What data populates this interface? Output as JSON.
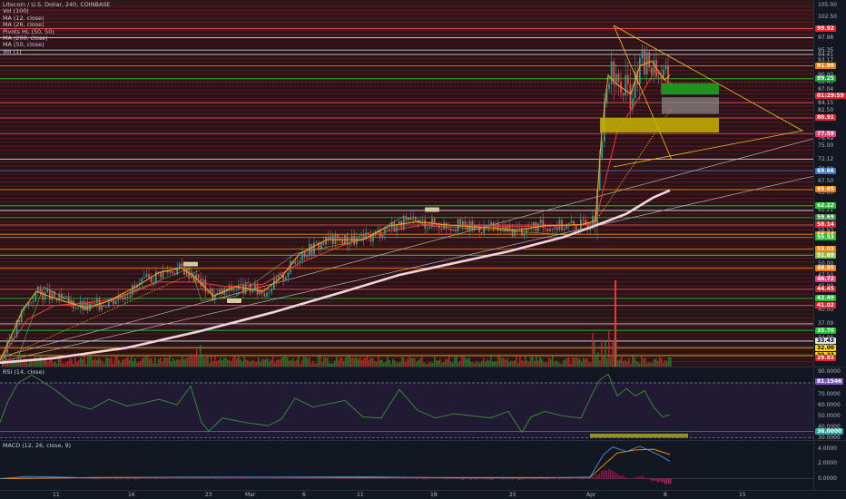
{
  "header": {
    "symbol": "Litecoin / U.S. Dollar, 240, COINBASE",
    "indicators": [
      "Vol (100)",
      "MA (12, close)",
      "MA (26, close)",
      "Pivots HL (50, 50)",
      "MA (200, close)",
      "MA (50, close)",
      "Vol (1)"
    ]
  },
  "rsi_legend": "RSI (14, close)",
  "macd_legend": "MACD (12, 26, close, 9)",
  "colors": {
    "background": "#131722",
    "up": "#26a69a",
    "down": "#ef5350",
    "ma_fast": "#f7a21b",
    "ma_slow": "#e53935",
    "ma_200": "#f3d3dc",
    "rsi_line": "#3f8f3f",
    "rsi_band": "#7e57c2",
    "macd_line": "#4a8fd8",
    "signal_line": "#ff9800",
    "box_green": "#1d9a1d",
    "box_gray": "#8c8c8c",
    "box_yellow": "#c8b400"
  },
  "price_axis": {
    "ticks": [
      "105.00",
      "102.50",
      "97.98",
      "95.35",
      "94.41",
      "93.17",
      "90.00",
      "88.46",
      "87.04",
      "84.15",
      "82.50",
      "77.59",
      "76.49",
      "75.00",
      "72.12",
      "70.00",
      "67.50",
      "65.00",
      "62.22",
      "61.21",
      "58.14",
      "56.93",
      "52.50",
      "50.00",
      "47.50",
      "45.00",
      "40.00",
      "37.09",
      "34.08",
      "32.98",
      "30.37",
      "29.83"
    ],
    "badges": [
      {
        "text": "99.92",
        "bg": "#e8212f",
        "fg": "#ffffff"
      },
      {
        "text": "91.99",
        "bg": "#f57c00",
        "fg": "#ffffff"
      },
      {
        "text": "89.25",
        "bg": "#1e9e2e",
        "fg": "#ffffff"
      },
      {
        "text": "01:29:59",
        "bg": "#e8212f",
        "fg": "#ffffff"
      },
      {
        "text": "80.91",
        "bg": "#e8212f",
        "fg": "#ffffff"
      },
      {
        "text": "77.59",
        "bg": "#ec407a",
        "fg": "#ffffff"
      },
      {
        "text": "69.66",
        "bg": "#3f73c4",
        "fg": "#ffffff"
      },
      {
        "text": "65.65",
        "bg": "#f57c00",
        "fg": "#ffffff"
      },
      {
        "text": "62.22",
        "bg": "#22c02a",
        "fg": "#ffffff"
      },
      {
        "text": "59.69",
        "bg": "#3a8a3a",
        "fg": "#ffffff"
      },
      {
        "text": "58.14",
        "bg": "#e8212f",
        "fg": "#ffffff"
      },
      {
        "text": "56.14",
        "bg": "#f57c00",
        "fg": "#ffffff"
      },
      {
        "text": "55.53",
        "bg": "#22c02a",
        "fg": "#ffffff"
      },
      {
        "text": "53.03",
        "bg": "#f57c00",
        "fg": "#ffffff"
      },
      {
        "text": "51.69",
        "bg": "#8bc34a",
        "fg": "#ffffff"
      },
      {
        "text": "48.95",
        "bg": "#f57c00",
        "fg": "#ffffff"
      },
      {
        "text": "46.72",
        "bg": "#ec407a",
        "fg": "#ffffff"
      },
      {
        "text": "44.45",
        "bg": "#c62828",
        "fg": "#ffffff"
      },
      {
        "text": "42.49",
        "bg": "#22c02a",
        "fg": "#ffffff"
      },
      {
        "text": "41.02",
        "bg": "#e8212f",
        "fg": "#ffffff"
      },
      {
        "text": "35.70",
        "bg": "#22c02a",
        "fg": "#ffffff"
      },
      {
        "text": "33.43",
        "bg": "#e0e0e0",
        "fg": "#000000"
      },
      {
        "text": "32.00",
        "bg": "#ffd600",
        "fg": "#000000"
      },
      {
        "text": "30.33",
        "bg": "#ffd600",
        "fg": "#000000"
      },
      {
        "text": "29.83",
        "bg": "#e8212f",
        "fg": "#ffffff"
      }
    ]
  },
  "rsi_axis": {
    "ticks": [
      "90.0000",
      "70.0000",
      "60.0000",
      "50.0000",
      "40.0000",
      "30.0000"
    ],
    "badges": [
      {
        "text": "81.1546",
        "bg": "#7e57c2",
        "fg": "#ffffff"
      },
      {
        "text": "36.0000",
        "bg": "#26a69a",
        "fg": "#ffffff"
      }
    ]
  },
  "macd_axis": {
    "ticks": [
      "4.0000",
      "2.0000",
      "0.0000"
    ]
  },
  "time_axis": {
    "labels": [
      "11",
      "16",
      "23",
      "Mar",
      "6",
      "11",
      "18",
      "25",
      "Apr",
      "8",
      "15"
    ]
  },
  "chart_data": {
    "type": "candlestick",
    "ylim": [
      28,
      106
    ],
    "ma200": [
      [
        0,
        28.8
      ],
      [
        60,
        29.8
      ],
      [
        140,
        32
      ],
      [
        220,
        35.5
      ],
      [
        300,
        39.5
      ],
      [
        380,
        44
      ],
      [
        440,
        47.5
      ],
      [
        500,
        50
      ],
      [
        560,
        52.5
      ],
      [
        620,
        55.5
      ],
      [
        656,
        58
      ],
      [
        690,
        60.5
      ],
      [
        720,
        64
      ],
      [
        738,
        65.5
      ]
    ],
    "ma12": [
      [
        0,
        29.2
      ],
      [
        25,
        40
      ],
      [
        40,
        44
      ],
      [
        60,
        42.5
      ],
      [
        95,
        40.5
      ],
      [
        120,
        42
      ],
      [
        150,
        45
      ],
      [
        175,
        48
      ],
      [
        200,
        49
      ],
      [
        215,
        47
      ],
      [
        235,
        43
      ],
      [
        260,
        45
      ],
      [
        290,
        44
      ],
      [
        310,
        47
      ],
      [
        330,
        52
      ],
      [
        360,
        55
      ],
      [
        400,
        55
      ],
      [
        430,
        58
      ],
      [
        460,
        58.8
      ],
      [
        500,
        58
      ],
      [
        540,
        57.5
      ],
      [
        570,
        57
      ],
      [
        600,
        58
      ],
      [
        640,
        58.2
      ],
      [
        656,
        59
      ],
      [
        663,
        78
      ],
      [
        670,
        90
      ],
      [
        680,
        88
      ],
      [
        695,
        86
      ],
      [
        705,
        92
      ],
      [
        718,
        93
      ],
      [
        732,
        89
      ],
      [
        738,
        90
      ]
    ],
    "ma26": [
      [
        0,
        29.5
      ],
      [
        30,
        38
      ],
      [
        60,
        41
      ],
      [
        95,
        41.5
      ],
      [
        130,
        42.5
      ],
      [
        175,
        46
      ],
      [
        215,
        46
      ],
      [
        250,
        45
      ],
      [
        290,
        45.5
      ],
      [
        330,
        50
      ],
      [
        380,
        54
      ],
      [
        430,
        57
      ],
      [
        470,
        58.2
      ],
      [
        520,
        58
      ],
      [
        560,
        57.8
      ],
      [
        620,
        57.9
      ],
      [
        656,
        58.5
      ],
      [
        665,
        66
      ],
      [
        680,
        78
      ],
      [
        700,
        84
      ],
      [
        722,
        91
      ],
      [
        738,
        88
      ]
    ],
    "rsi": [
      [
        0,
        44
      ],
      [
        8,
        62
      ],
      [
        20,
        80
      ],
      [
        35,
        87
      ],
      [
        45,
        82
      ],
      [
        60,
        74
      ],
      [
        80,
        61
      ],
      [
        100,
        56
      ],
      [
        120,
        65
      ],
      [
        140,
        59
      ],
      [
        160,
        62
      ],
      [
        175,
        65
      ],
      [
        195,
        60
      ],
      [
        210,
        77
      ],
      [
        222,
        44
      ],
      [
        230,
        36
      ],
      [
        245,
        48
      ],
      [
        270,
        44
      ],
      [
        295,
        41
      ],
      [
        310,
        47
      ],
      [
        325,
        66
      ],
      [
        345,
        58
      ],
      [
        380,
        64
      ],
      [
        400,
        49
      ],
      [
        420,
        48
      ],
      [
        440,
        74
      ],
      [
        460,
        55
      ],
      [
        480,
        48
      ],
      [
        500,
        52
      ],
      [
        520,
        50
      ],
      [
        540,
        48
      ],
      [
        560,
        54
      ],
      [
        575,
        35
      ],
      [
        585,
        49
      ],
      [
        600,
        54
      ],
      [
        620,
        50
      ],
      [
        640,
        48
      ],
      [
        652,
        69
      ],
      [
        660,
        82
      ],
      [
        670,
        88
      ],
      [
        680,
        68
      ],
      [
        690,
        75
      ],
      [
        700,
        68
      ],
      [
        710,
        73
      ],
      [
        720,
        58
      ],
      [
        730,
        49
      ],
      [
        738,
        51
      ]
    ],
    "macd": [
      [
        0,
        0
      ],
      [
        30,
        0.3
      ],
      [
        100,
        0.1
      ],
      [
        200,
        0.2
      ],
      [
        300,
        0.2
      ],
      [
        400,
        0.25
      ],
      [
        500,
        0.1
      ],
      [
        600,
        0.1
      ],
      [
        650,
        0.2
      ],
      [
        665,
        3.2
      ],
      [
        675,
        4.2
      ],
      [
        690,
        3.6
      ],
      [
        705,
        4.3
      ],
      [
        725,
        3.2
      ],
      [
        738,
        2.3
      ]
    ],
    "signal": [
      [
        0,
        0
      ],
      [
        100,
        0.15
      ],
      [
        300,
        0.18
      ],
      [
        500,
        0.15
      ],
      [
        650,
        0.15
      ],
      [
        665,
        1.8
      ],
      [
        680,
        3.4
      ],
      [
        700,
        3.8
      ],
      [
        720,
        3.9
      ],
      [
        738,
        3.2
      ]
    ]
  }
}
